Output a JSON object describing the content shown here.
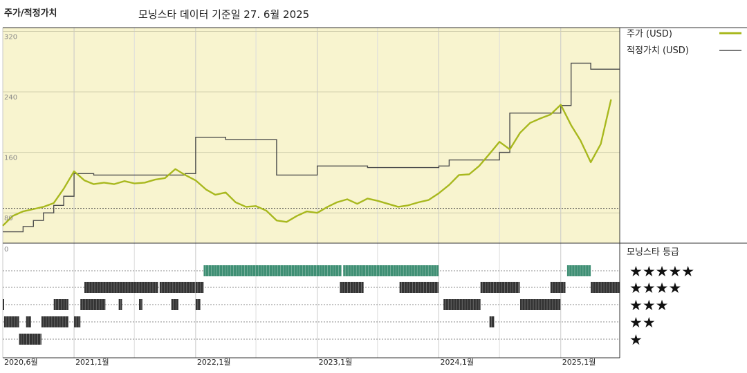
{
  "header": {
    "title": "주가/적정가치",
    "subtitle": "모닝스타 데이터 기준일 27. 6월 2025"
  },
  "colors": {
    "price": "#a8b81e",
    "fair": "#4d4d4d",
    "plot_bg": "#f8f4cf",
    "rating_top": "#3f8f74",
    "rating": "#333333"
  },
  "chart_data": [
    {
      "type": "line",
      "title": "",
      "y_ticks": [
        80,
        160,
        240,
        320
      ],
      "ylim": [
        40,
        325
      ],
      "x_ticks": [
        "2020,6월",
        "2021,1월",
        "2022,1월",
        "2023,1월",
        "2024,1월",
        "2025,1월"
      ],
      "x_range": [
        "2020-06-01",
        "2025-06-27"
      ],
      "reference_line": 86,
      "grid": true,
      "legend_position": "right",
      "series": [
        {
          "name": "주가 (USD)",
          "x": [
            "2020-06",
            "2020-07",
            "2020-08",
            "2020-09",
            "2020-10",
            "2020-11",
            "2020-12",
            "2021-01",
            "2021-02",
            "2021-03",
            "2021-04",
            "2021-05",
            "2021-06",
            "2021-07",
            "2021-08",
            "2021-09",
            "2021-10",
            "2021-11",
            "2021-12",
            "2022-01",
            "2022-02",
            "2022-03",
            "2022-04",
            "2022-05",
            "2022-06",
            "2022-07",
            "2022-08",
            "2022-09",
            "2022-10",
            "2022-11",
            "2022-12",
            "2023-01",
            "2023-02",
            "2023-03",
            "2023-04",
            "2023-05",
            "2023-06",
            "2023-07",
            "2023-08",
            "2023-09",
            "2023-10",
            "2023-11",
            "2023-12",
            "2024-01",
            "2024-02",
            "2024-03",
            "2024-04",
            "2024-05",
            "2024-06",
            "2024-07",
            "2024-08",
            "2024-09",
            "2024-10",
            "2024-11",
            "2024-12",
            "2025-01",
            "2025-02",
            "2025-03",
            "2025-04",
            "2025-05",
            "2025-06"
          ],
          "values": [
            63,
            76,
            82,
            85,
            88,
            93,
            112,
            135,
            123,
            118,
            120,
            118,
            122,
            119,
            120,
            124,
            126,
            138,
            130,
            123,
            111,
            104,
            107,
            94,
            88,
            89,
            83,
            70,
            68,
            76,
            82,
            80,
            88,
            94,
            98,
            92,
            99,
            96,
            92,
            88,
            90,
            94,
            97,
            106,
            117,
            130,
            131,
            142,
            158,
            174,
            164,
            186,
            199,
            205,
            210,
            223,
            196,
            176,
            147,
            171,
            230
          ]
        },
        {
          "name": "적정가치 (USD)",
          "x": [
            "2020-06",
            "2020-07",
            "2020-08",
            "2020-09",
            "2020-10",
            "2020-11",
            "2020-12",
            "2021-01",
            "2021-02",
            "2021-03",
            "2021-04",
            "2021-05",
            "2021-06",
            "2021-07",
            "2021-08",
            "2021-09",
            "2021-10",
            "2021-11",
            "2021-12",
            "2022-01",
            "2022-02",
            "2022-03",
            "2022-04",
            "2022-05",
            "2022-06",
            "2022-07",
            "2022-08",
            "2022-09",
            "2022-10",
            "2022-11",
            "2022-12",
            "2023-01",
            "2023-02",
            "2023-03",
            "2023-04",
            "2023-05",
            "2023-06",
            "2023-07",
            "2023-08",
            "2023-09",
            "2023-10",
            "2023-11",
            "2023-12",
            "2024-01",
            "2024-02",
            "2024-03",
            "2024-04",
            "2024-05",
            "2024-06",
            "2024-07",
            "2024-08",
            "2024-09",
            "2024-10",
            "2024-11",
            "2024-12",
            "2025-01",
            "2025-02",
            "2025-03",
            "2025-04",
            "2025-05",
            "2025-06"
          ],
          "values": [
            55,
            55,
            62,
            70,
            80,
            90,
            102,
            132,
            132,
            130,
            130,
            130,
            130,
            130,
            130,
            130,
            130,
            130,
            132,
            180,
            180,
            180,
            177,
            177,
            177,
            177,
            177,
            130,
            130,
            130,
            130,
            142,
            142,
            142,
            142,
            142,
            140,
            140,
            140,
            140,
            140,
            140,
            140,
            142,
            150,
            150,
            150,
            150,
            150,
            160,
            212,
            212,
            212,
            212,
            212,
            222,
            278,
            278,
            270,
            270,
            270
          ]
        }
      ]
    },
    {
      "type": "bar",
      "title": "모닝스타 등급",
      "categories": [
        "5",
        "4",
        "3",
        "2",
        "1"
      ],
      "star_labels": [
        "★★★★★",
        "★★★★",
        "★★★",
        "★★",
        "★"
      ],
      "runs": [
        {
          "rating": 3,
          "start": "2020-06-01",
          "end": "2020-06-05"
        },
        {
          "rating": 2,
          "start": "2020-06-05",
          "end": "2020-07-20"
        },
        {
          "rating": 1,
          "start": "2020-07-20",
          "end": "2020-09-25"
        },
        {
          "rating": 2,
          "start": "2020-08-10",
          "end": "2020-08-25"
        },
        {
          "rating": 2,
          "start": "2020-09-25",
          "end": "2020-12-15"
        },
        {
          "rating": 3,
          "start": "2020-11-01",
          "end": "2020-12-15"
        },
        {
          "rating": 2,
          "start": "2021-01-01",
          "end": "2021-01-20"
        },
        {
          "rating": 3,
          "start": "2021-01-20",
          "end": "2021-04-05"
        },
        {
          "rating": 4,
          "start": "2021-02-01",
          "end": "2021-09-10"
        },
        {
          "rating": 3,
          "start": "2021-05-15",
          "end": "2021-05-25"
        },
        {
          "rating": 3,
          "start": "2021-07-15",
          "end": "2021-07-25"
        },
        {
          "rating": 3,
          "start": "2021-10-20",
          "end": "2021-11-10"
        },
        {
          "rating": 4,
          "start": "2021-09-15",
          "end": "2021-12-31"
        },
        {
          "rating": 3,
          "start": "2022-01-01",
          "end": "2022-01-15"
        },
        {
          "rating": 4,
          "start": "2022-01-01",
          "end": "2022-01-25"
        },
        {
          "rating": 5,
          "start": "2022-01-25",
          "end": "2023-03-15"
        },
        {
          "rating": 5,
          "start": "2023-03-20",
          "end": "2023-12-31"
        },
        {
          "rating": 4,
          "start": "2023-03-10",
          "end": "2023-05-20"
        },
        {
          "rating": 5,
          "start": "2023-05-20",
          "end": "2023-09-05"
        },
        {
          "rating": 4,
          "start": "2023-09-05",
          "end": "2023-12-31"
        },
        {
          "rating": 3,
          "start": "2024-01-15",
          "end": "2024-05-05"
        },
        {
          "rating": 4,
          "start": "2024-05-05",
          "end": "2024-08-31"
        },
        {
          "rating": 2,
          "start": "2024-06-01",
          "end": "2024-06-15"
        },
        {
          "rating": 3,
          "start": "2024-09-01",
          "end": "2024-12-31"
        },
        {
          "rating": 4,
          "start": "2024-12-01",
          "end": "2025-01-15"
        },
        {
          "rating": 5,
          "start": "2025-01-20",
          "end": "2025-04-01"
        },
        {
          "rating": 4,
          "start": "2025-04-01",
          "end": "2025-06-27"
        }
      ]
    }
  ]
}
